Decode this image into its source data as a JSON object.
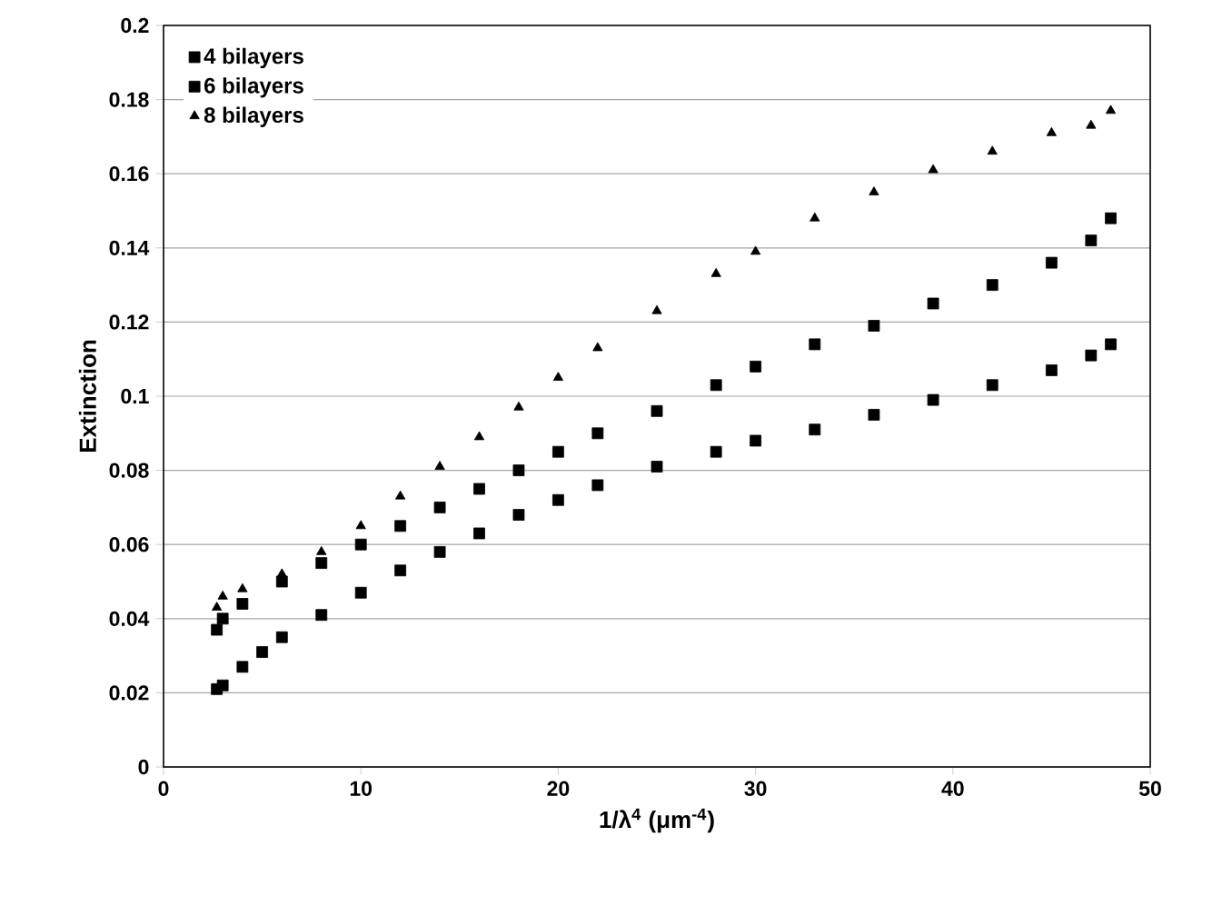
{
  "chart_data": {
    "type": "scatter",
    "xlabel": "1/λ$^{4}$ (μm$^{-4}$)",
    "ylabel": "Extinction",
    "xlim": [
      0,
      50
    ],
    "xticks": [
      0,
      10,
      20,
      30,
      40,
      50
    ],
    "ylim": [
      0,
      0.2
    ],
    "yticks": [
      0,
      0.02,
      0.04,
      0.06,
      0.08,
      0.1,
      0.12,
      0.14,
      0.16,
      0.18,
      0.2
    ],
    "grid": "y",
    "legend": "top left",
    "series": [
      {
        "name": "4 bilayers",
        "color": "#000000",
        "marker": "square",
        "x": [
          2.7,
          3,
          4,
          5,
          6,
          8,
          10,
          12,
          14,
          16,
          18,
          20,
          22,
          25,
          28,
          30,
          33,
          36,
          39,
          42,
          45,
          47,
          48
        ],
        "values": [
          0.021,
          0.022,
          0.027,
          0.031,
          0.035,
          0.041,
          0.047,
          0.053,
          0.058,
          0.063,
          0.068,
          0.072,
          0.076,
          0.081,
          0.085,
          0.088,
          0.091,
          0.095,
          0.099,
          0.103,
          0.107,
          0.111,
          0.114
        ]
      },
      {
        "name": "6 bilayers",
        "color": "#000000",
        "marker": "square",
        "x": [
          2.7,
          3,
          4,
          6,
          8,
          10,
          12,
          14,
          16,
          18,
          20,
          22,
          25,
          28,
          30,
          33,
          36,
          39,
          42,
          45,
          47,
          48
        ],
        "values": [
          0.037,
          0.04,
          0.044,
          0.05,
          0.055,
          0.06,
          0.065,
          0.07,
          0.075,
          0.08,
          0.085,
          0.09,
          0.096,
          0.103,
          0.108,
          0.114,
          0.119,
          0.125,
          0.13,
          0.136,
          0.142,
          0.148
        ]
      },
      {
        "name": "8 bilayers",
        "color": "#000000",
        "marker": "triangle",
        "x": [
          2.7,
          3,
          4,
          6,
          8,
          10,
          12,
          14,
          16,
          18,
          20,
          22,
          25,
          28,
          30,
          33,
          36,
          39,
          42,
          45,
          47,
          48
        ],
        "values": [
          0.043,
          0.046,
          0.048,
          0.052,
          0.058,
          0.065,
          0.073,
          0.081,
          0.089,
          0.097,
          0.105,
          0.113,
          0.123,
          0.133,
          0.139,
          0.148,
          0.155,
          0.161,
          0.166,
          0.171,
          0.173,
          0.177
        ]
      }
    ]
  }
}
